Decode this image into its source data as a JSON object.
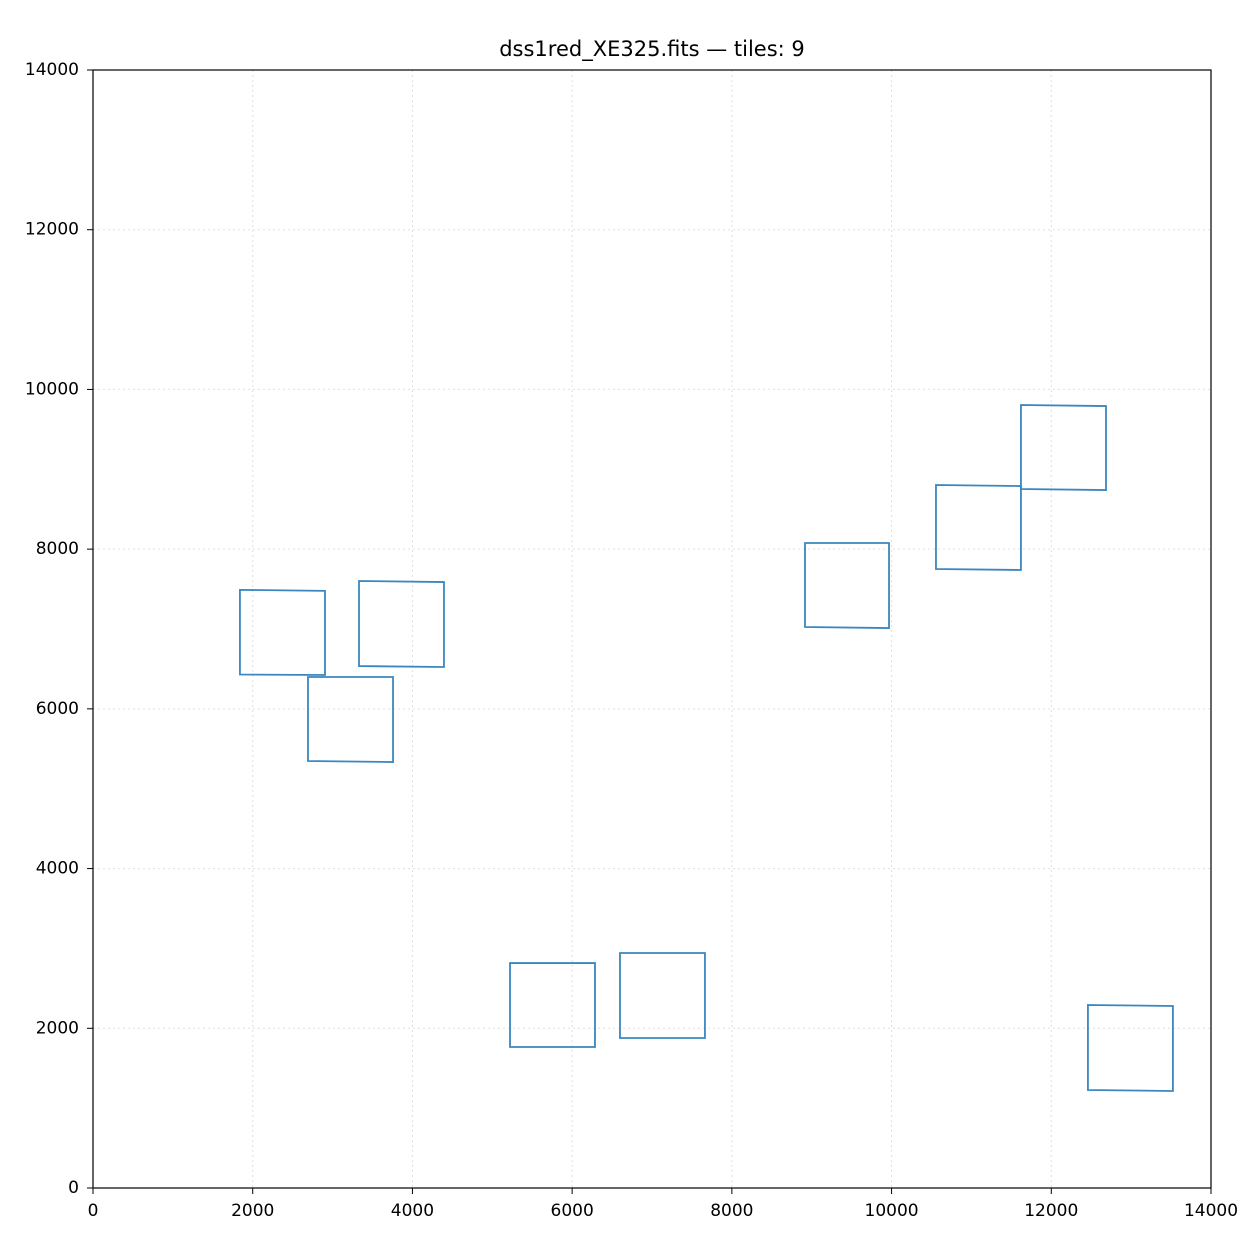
{
  "chart_data": {
    "type": "polygon",
    "title": "dss1red_XE325.fits — tiles: 9",
    "color": "#3a87c0",
    "grid": true,
    "xlim": [
      0,
      14000
    ],
    "ylim": [
      0,
      14000
    ],
    "xticks": [
      0,
      2000,
      4000,
      6000,
      8000,
      10000,
      12000,
      14000
    ],
    "yticks": [
      0,
      2000,
      4000,
      6000,
      8000,
      10000,
      12000,
      14000
    ],
    "tiles": [
      {
        "x": [
          1840,
          2905,
          2905,
          1840
        ],
        "y": [
          7490,
          7478,
          6424,
          6430
        ]
      },
      {
        "x": [
          3331,
          4395,
          4395,
          3331
        ],
        "y": [
          7601,
          7588,
          6524,
          6536
        ]
      },
      {
        "x": [
          2692,
          3757,
          3757,
          2692
        ],
        "y": [
          6399,
          6399,
          5334,
          5347
        ]
      },
      {
        "x": [
          8916,
          9968,
          9968,
          8916
        ],
        "y": [
          8077,
          8077,
          7012,
          7025
        ]
      },
      {
        "x": [
          10556,
          11620,
          11620,
          10556
        ],
        "y": [
          8803,
          8790,
          7739,
          7751
        ]
      },
      {
        "x": [
          11620,
          12685,
          12685,
          11620
        ],
        "y": [
          9805,
          9792,
          8740,
          8753
        ]
      },
      {
        "x": [
          5222,
          6286,
          6286,
          5222
        ],
        "y": [
          2817,
          2817,
          1766,
          1766
        ]
      },
      {
        "x": [
          6599,
          7663,
          7663,
          6599
        ],
        "y": [
          2943,
          2943,
          1878,
          1878
        ]
      },
      {
        "x": [
          12459,
          13523,
          13523,
          12459
        ],
        "y": [
          2292,
          2279,
          1215,
          1227
        ]
      }
    ]
  }
}
